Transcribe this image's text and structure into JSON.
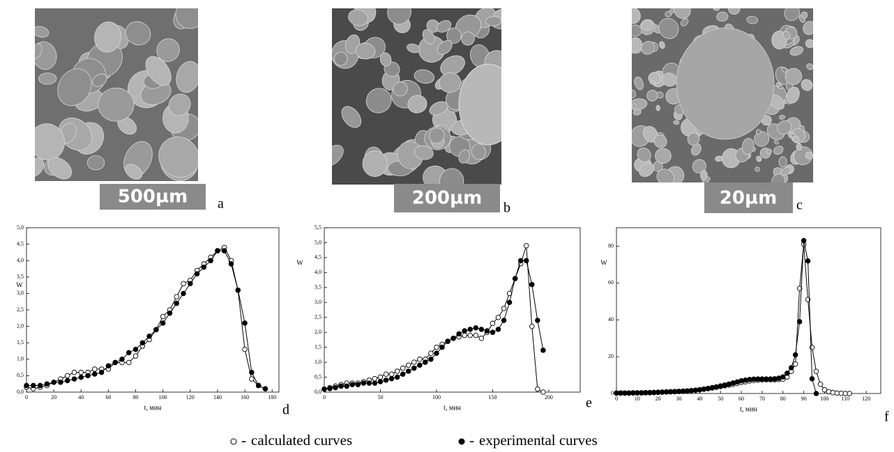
{
  "images": [
    {
      "scale": "500µm",
      "label": "a"
    },
    {
      "scale": "200µm",
      "label": "b"
    },
    {
      "scale": "20µm",
      "label": "c"
    }
  ],
  "legend_separator": "-",
  "chart_data": [
    {
      "type": "line",
      "label": "d",
      "xlabel": "t, мин",
      "ylabel": "W",
      "xlim": [
        0,
        185
      ],
      "ylim": [
        0,
        5
      ],
      "xticks": [
        0,
        20,
        40,
        60,
        80,
        100,
        120,
        140,
        160,
        180
      ],
      "yticks": [
        {
          "value": 0,
          "label": "0,0"
        },
        {
          "value": 0.5,
          "label": "0,5"
        },
        {
          "value": 1,
          "label": "1,0"
        },
        {
          "value": 1.5,
          "label": "1,5"
        },
        {
          "value": 2,
          "label": "2,0"
        },
        {
          "value": 2.5,
          "label": "2,5"
        },
        {
          "value": 3,
          "label": "3,0"
        },
        {
          "value": 3.5,
          "label": "3,5"
        },
        {
          "value": 4,
          "label": "4,0"
        },
        {
          "value": 4.5,
          "label": "4,5"
        },
        {
          "value": 5,
          "label": "5,0"
        }
      ],
      "series": [
        {
          "name": "calculated curves",
          "color": "#000000",
          "filled": false,
          "x": [
            0,
            5,
            10,
            15,
            20,
            25,
            30,
            35,
            40,
            45,
            50,
            55,
            60,
            65,
            70,
            75,
            80,
            85,
            90,
            95,
            100,
            105,
            110,
            115,
            120,
            125,
            130,
            135,
            140,
            145,
            150,
            155,
            160,
            165,
            170,
            175
          ],
          "values": [
            0.15,
            0.1,
            0.15,
            0.2,
            0.3,
            0.4,
            0.5,
            0.6,
            0.6,
            0.6,
            0.7,
            0.7,
            0.7,
            0.9,
            0.9,
            0.9,
            1.1,
            1.4,
            1.6,
            1.9,
            2.3,
            2.5,
            2.9,
            3.3,
            3.4,
            3.7,
            3.9,
            4.1,
            4.3,
            4.4,
            4.0,
            3.1,
            1.3,
            0.4,
            0.2,
            0.1
          ]
        },
        {
          "name": "experimental curves",
          "color": "#000000",
          "filled": true,
          "x": [
            0,
            5,
            10,
            15,
            20,
            25,
            30,
            35,
            40,
            45,
            50,
            55,
            60,
            65,
            70,
            75,
            80,
            85,
            90,
            95,
            100,
            105,
            110,
            115,
            120,
            125,
            130,
            135,
            140,
            145,
            150,
            155,
            160,
            165,
            170,
            175
          ],
          "values": [
            0.2,
            0.2,
            0.2,
            0.25,
            0.3,
            0.3,
            0.35,
            0.4,
            0.45,
            0.5,
            0.55,
            0.6,
            0.8,
            0.9,
            1.0,
            1.2,
            1.3,
            1.5,
            1.7,
            1.9,
            2.1,
            2.4,
            2.7,
            3.0,
            3.3,
            3.6,
            3.8,
            4.0,
            4.3,
            4.3,
            3.9,
            3.1,
            2.1,
            0.6,
            0.2,
            0.1
          ]
        }
      ]
    },
    {
      "type": "line",
      "label": "e",
      "xlabel": "t, мин",
      "ylabel": "W",
      "xlim": [
        0,
        228
      ],
      "ylim": [
        0,
        5.5
      ],
      "xticks": [
        0,
        50,
        100,
        150,
        200
      ],
      "yticks": [
        {
          "value": 0,
          "label": "0,0"
        },
        {
          "value": 0.5,
          "label": "0,5"
        },
        {
          "value": 1,
          "label": "1,0"
        },
        {
          "value": 1.5,
          "label": "1,5"
        },
        {
          "value": 2,
          "label": "2,0"
        },
        {
          "value": 2.5,
          "label": "2,5"
        },
        {
          "value": 3,
          "label": "3,0"
        },
        {
          "value": 3.5,
          "label": "3,5"
        },
        {
          "value": 4,
          "label": "4,0"
        },
        {
          "value": 4.5,
          "label": "4,5"
        },
        {
          "value": 5,
          "label": "5,0"
        },
        {
          "value": 5.5,
          "label": "5,5"
        }
      ],
      "series": [
        {
          "name": "calculated curves",
          "color": "#000000",
          "filled": false,
          "x": [
            0,
            5,
            10,
            15,
            20,
            25,
            30,
            35,
            40,
            45,
            50,
            55,
            60,
            65,
            70,
            75,
            80,
            85,
            90,
            95,
            100,
            105,
            110,
            115,
            120,
            125,
            130,
            135,
            140,
            145,
            150,
            155,
            160,
            165,
            170,
            175,
            180,
            185,
            190,
            195
          ],
          "values": [
            0.1,
            0.15,
            0.2,
            0.25,
            0.3,
            0.3,
            0.3,
            0.35,
            0.4,
            0.45,
            0.5,
            0.6,
            0.6,
            0.7,
            0.8,
            0.9,
            1.0,
            1.1,
            1.1,
            1.3,
            1.5,
            1.6,
            1.7,
            1.8,
            1.85,
            1.9,
            1.9,
            1.9,
            1.8,
            2.0,
            2.3,
            2.5,
            2.8,
            3.3,
            3.8,
            4.3,
            4.9,
            2.2,
            0.1,
            0
          ]
        },
        {
          "name": "experimental curves",
          "color": "#000000",
          "filled": true,
          "x": [
            0,
            5,
            10,
            15,
            20,
            25,
            30,
            35,
            40,
            45,
            50,
            55,
            60,
            65,
            70,
            75,
            80,
            85,
            90,
            95,
            100,
            105,
            110,
            115,
            120,
            125,
            130,
            135,
            140,
            145,
            150,
            155,
            160,
            165,
            170,
            175,
            180,
            185,
            190,
            195
          ],
          "values": [
            0.1,
            0.12,
            0.15,
            0.2,
            0.2,
            0.25,
            0.25,
            0.3,
            0.3,
            0.3,
            0.35,
            0.4,
            0.45,
            0.5,
            0.6,
            0.7,
            0.8,
            0.9,
            1.0,
            1.1,
            1.3,
            1.5,
            1.7,
            1.8,
            1.95,
            2.05,
            2.1,
            2.15,
            2.1,
            2.05,
            2.0,
            2.1,
            2.4,
            3.0,
            3.8,
            4.4,
            4.4,
            3.6,
            2.4,
            1.4
          ]
        }
      ]
    },
    {
      "type": "line",
      "label": "f",
      "xlabel": "t, мин",
      "ylabel": "W",
      "xlim": [
        0,
        127
      ],
      "ylim": [
        0,
        90
      ],
      "xticks": [
        0,
        10,
        20,
        30,
        40,
        50,
        60,
        70,
        80,
        90,
        100,
        110,
        120
      ],
      "yticks": [
        0,
        20,
        40,
        60,
        80
      ],
      "series": [
        {
          "name": "calculated curves",
          "color": "#000000",
          "filled": false,
          "x": [
            0,
            2,
            4,
            6,
            8,
            10,
            12,
            14,
            16,
            18,
            20,
            22,
            24,
            26,
            28,
            30,
            32,
            34,
            36,
            38,
            40,
            42,
            44,
            46,
            48,
            50,
            52,
            54,
            56,
            58,
            60,
            62,
            64,
            66,
            68,
            70,
            72,
            74,
            76,
            78,
            80,
            82,
            84,
            86,
            88,
            90,
            92,
            94,
            96,
            98,
            100,
            102,
            104,
            106,
            108,
            110,
            112
          ],
          "values": [
            0.2,
            0.2,
            0.2,
            0.2,
            0.3,
            0.3,
            0.3,
            0.4,
            0.4,
            0.5,
            0.6,
            0.7,
            0.8,
            0.9,
            1.0,
            1.1,
            1.2,
            1.3,
            1.5,
            1.7,
            2.0,
            2.3,
            2.6,
            3.0,
            3.4,
            3.8,
            4.2,
            4.6,
            5.0,
            5.5,
            6.0,
            6.4,
            6.8,
            7.1,
            7.3,
            7.4,
            7.5,
            7.5,
            7.5,
            7.6,
            7.8,
            9,
            12,
            16,
            57,
            81,
            51,
            25,
            12,
            5,
            2,
            1,
            0.5,
            0.2,
            0.1,
            0,
            0
          ]
        },
        {
          "name": "experimental curves",
          "color": "#000000",
          "filled": true,
          "x": [
            0,
            2,
            4,
            6,
            8,
            10,
            12,
            14,
            16,
            18,
            20,
            22,
            24,
            26,
            28,
            30,
            32,
            34,
            36,
            38,
            40,
            42,
            44,
            46,
            48,
            50,
            52,
            54,
            56,
            58,
            60,
            62,
            64,
            66,
            68,
            70,
            72,
            74,
            76,
            78,
            80,
            82,
            84,
            86,
            88,
            90,
            92,
            94,
            96
          ],
          "values": [
            0.3,
            0.3,
            0.3,
            0.3,
            0.4,
            0.4,
            0.4,
            0.5,
            0.5,
            0.6,
            0.7,
            0.8,
            0.9,
            1.0,
            1.1,
            1.2,
            1.3,
            1.4,
            1.6,
            1.8,
            2.1,
            2.4,
            2.8,
            3.2,
            3.6,
            4.1,
            4.6,
            5.1,
            5.7,
            6.3,
            6.9,
            7.3,
            7.6,
            7.8,
            7.9,
            7.9,
            7.9,
            7.9,
            8.0,
            8.3,
            9.0,
            11,
            14,
            21,
            39,
            83,
            72,
            8,
            0
          ]
        }
      ]
    }
  ]
}
